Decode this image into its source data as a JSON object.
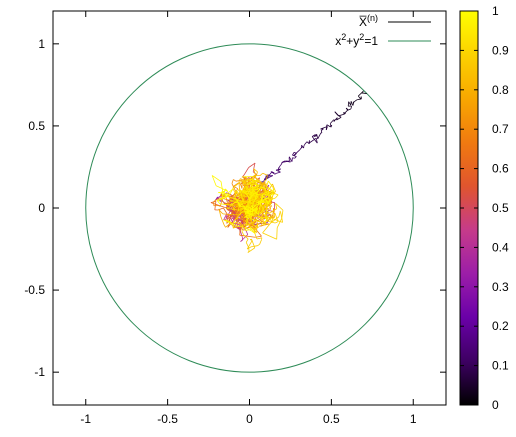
{
  "chart_data": {
    "type": "scatter",
    "description_series": [
      {
        "name": "X̅ (n)",
        "color": "#000000",
        "style": "line"
      },
      {
        "name": "x²+y²=1",
        "color": "#2e8b57",
        "style": "line"
      }
    ],
    "legend": {
      "position": "top-right",
      "entries": [
        {
          "base": "X̅",
          "sup": "(n)"
        },
        {
          "parts": [
            "x",
            "2",
            "+y",
            "2",
            "=1"
          ]
        }
      ]
    },
    "xlim": [
      -1.2,
      1.2
    ],
    "ylim": [
      -1.2,
      1.2
    ],
    "xticks": [
      -1,
      -0.5,
      0,
      0.5,
      1
    ],
    "yticks": [
      -1,
      -0.5,
      0,
      0.5,
      1
    ],
    "xtick_labels": [
      "-1",
      "-0.5",
      "0",
      "0.5",
      "1"
    ],
    "ytick_labels": [
      "-1",
      "-0.5",
      "0",
      "0.5",
      "1"
    ],
    "circle": {
      "cx": 0,
      "cy": 0,
      "r": 1
    },
    "path_start": [
      0.7,
      0.7
    ],
    "path_trend": [
      [
        0.7,
        0.7
      ],
      [
        0.62,
        0.63
      ],
      [
        0.55,
        0.55
      ],
      [
        0.45,
        0.47
      ],
      [
        0.36,
        0.4
      ],
      [
        0.28,
        0.33
      ],
      [
        0.2,
        0.26
      ],
      [
        0.12,
        0.19
      ],
      [
        0.05,
        0.12
      ],
      [
        0.0,
        0.05
      ]
    ],
    "cluster": {
      "center": [
        0.0,
        0.02
      ],
      "spread": 0.13
    },
    "colorbar": {
      "min": 0,
      "max": 1,
      "ticks": [
        0,
        0.1,
        0.2,
        0.3,
        0.4,
        0.5,
        0.6,
        0.7,
        0.8,
        0.9,
        1
      ],
      "tick_labels": [
        "0",
        "0.1",
        "0.2",
        "0.3",
        "0.4",
        "0.5",
        "0.6",
        "0.7",
        "0.8",
        "0.9",
        "1"
      ],
      "stops": [
        "#000000",
        "#3d0062",
        "#6a00a8",
        "#9c1ea8",
        "#c63b8a",
        "#e0552e",
        "#f07a10",
        "#f8a700",
        "#fcd200",
        "#ffff00"
      ]
    }
  }
}
